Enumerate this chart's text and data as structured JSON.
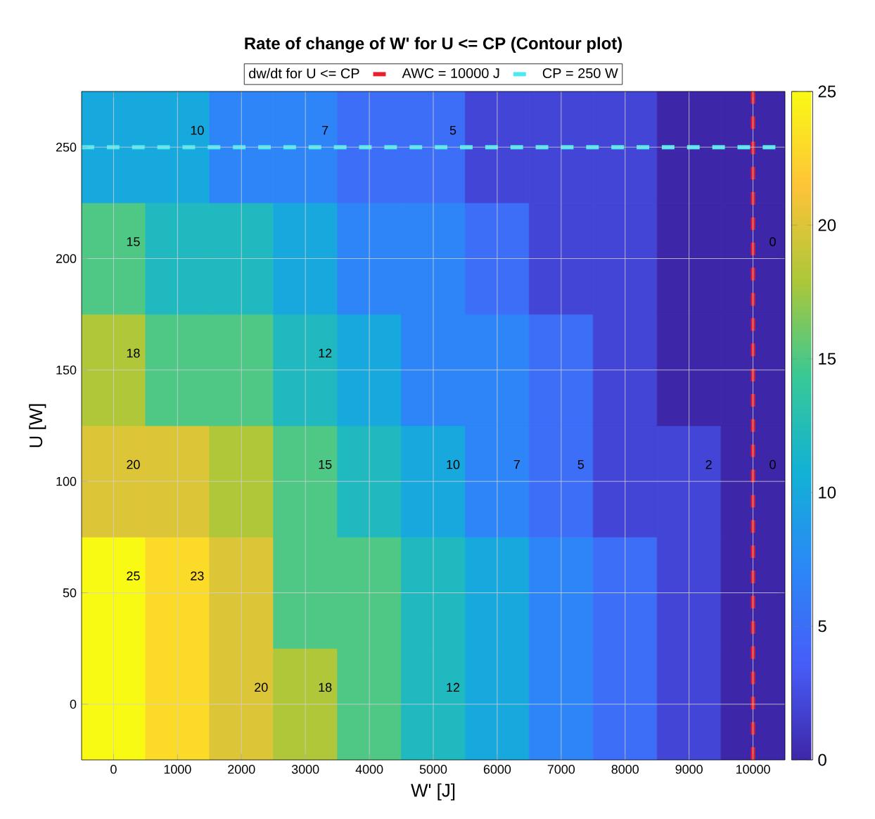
{
  "chart_data": {
    "type": "heatmap",
    "title": "**Rate of change of W' for U <= CP (Contour plot)**",
    "xlabel": "W' [J]",
    "ylabel": "U [W]",
    "legend_title": "dw/dt for U <= CP",
    "categories": [
      "0",
      "1000",
      "2000",
      "3000",
      "4000",
      "5000",
      "6000",
      "7000",
      "8000",
      "9000",
      "10000"
    ],
    "y_categories": [
      "250",
      "200",
      "150",
      "100",
      "50",
      "0"
    ],
    "cells": [
      [
        10,
        10,
        7,
        7,
        5,
        5,
        2,
        2,
        2,
        0,
        0
      ],
      [
        15,
        12,
        12,
        10,
        7,
        7,
        5,
        2,
        2,
        0,
        0
      ],
      [
        18,
        15,
        15,
        12,
        10,
        7,
        7,
        5,
        2,
        0,
        0
      ],
      [
        20,
        20,
        18,
        15,
        12,
        10,
        7,
        5,
        2,
        2,
        0
      ],
      [
        25,
        23,
        20,
        15,
        15,
        12,
        10,
        7,
        5,
        2,
        0
      ],
      [
        25,
        23,
        20,
        18,
        15,
        12,
        10,
        7,
        5,
        2,
        0
      ]
    ],
    "clim": [
      0,
      25
    ],
    "cticks": [
      0,
      5,
      10,
      15,
      20,
      25
    ],
    "grid": true,
    "legend": "top",
    "ref_lines": [
      {
        "axis": "x",
        "value": "10000",
        "label": "AWC = 10000 J",
        "color": "#e8202e",
        "line_style": "dashed"
      },
      {
        "axis": "y",
        "value": "250",
        "label": "CP = 250 W",
        "color": "#4ee8f0",
        "line_style": "dashed"
      }
    ],
    "cell_labels": [
      [
        null,
        "10",
        null,
        "7",
        null,
        "5",
        null,
        null,
        null,
        null,
        null
      ],
      [
        "15",
        null,
        null,
        null,
        null,
        null,
        null,
        null,
        null,
        null,
        "0"
      ],
      [
        "18",
        null,
        null,
        "12",
        null,
        null,
        null,
        null,
        null,
        null,
        null
      ],
      [
        "20",
        null,
        null,
        "15",
        null,
        "10",
        "7",
        "5",
        null,
        "2",
        "0"
      ],
      [
        "25",
        "23",
        null,
        null,
        null,
        null,
        null,
        null,
        null,
        null,
        null
      ],
      [
        null,
        null,
        "20",
        "18",
        null,
        "12",
        null,
        null,
        null,
        null,
        null
      ]
    ]
  }
}
